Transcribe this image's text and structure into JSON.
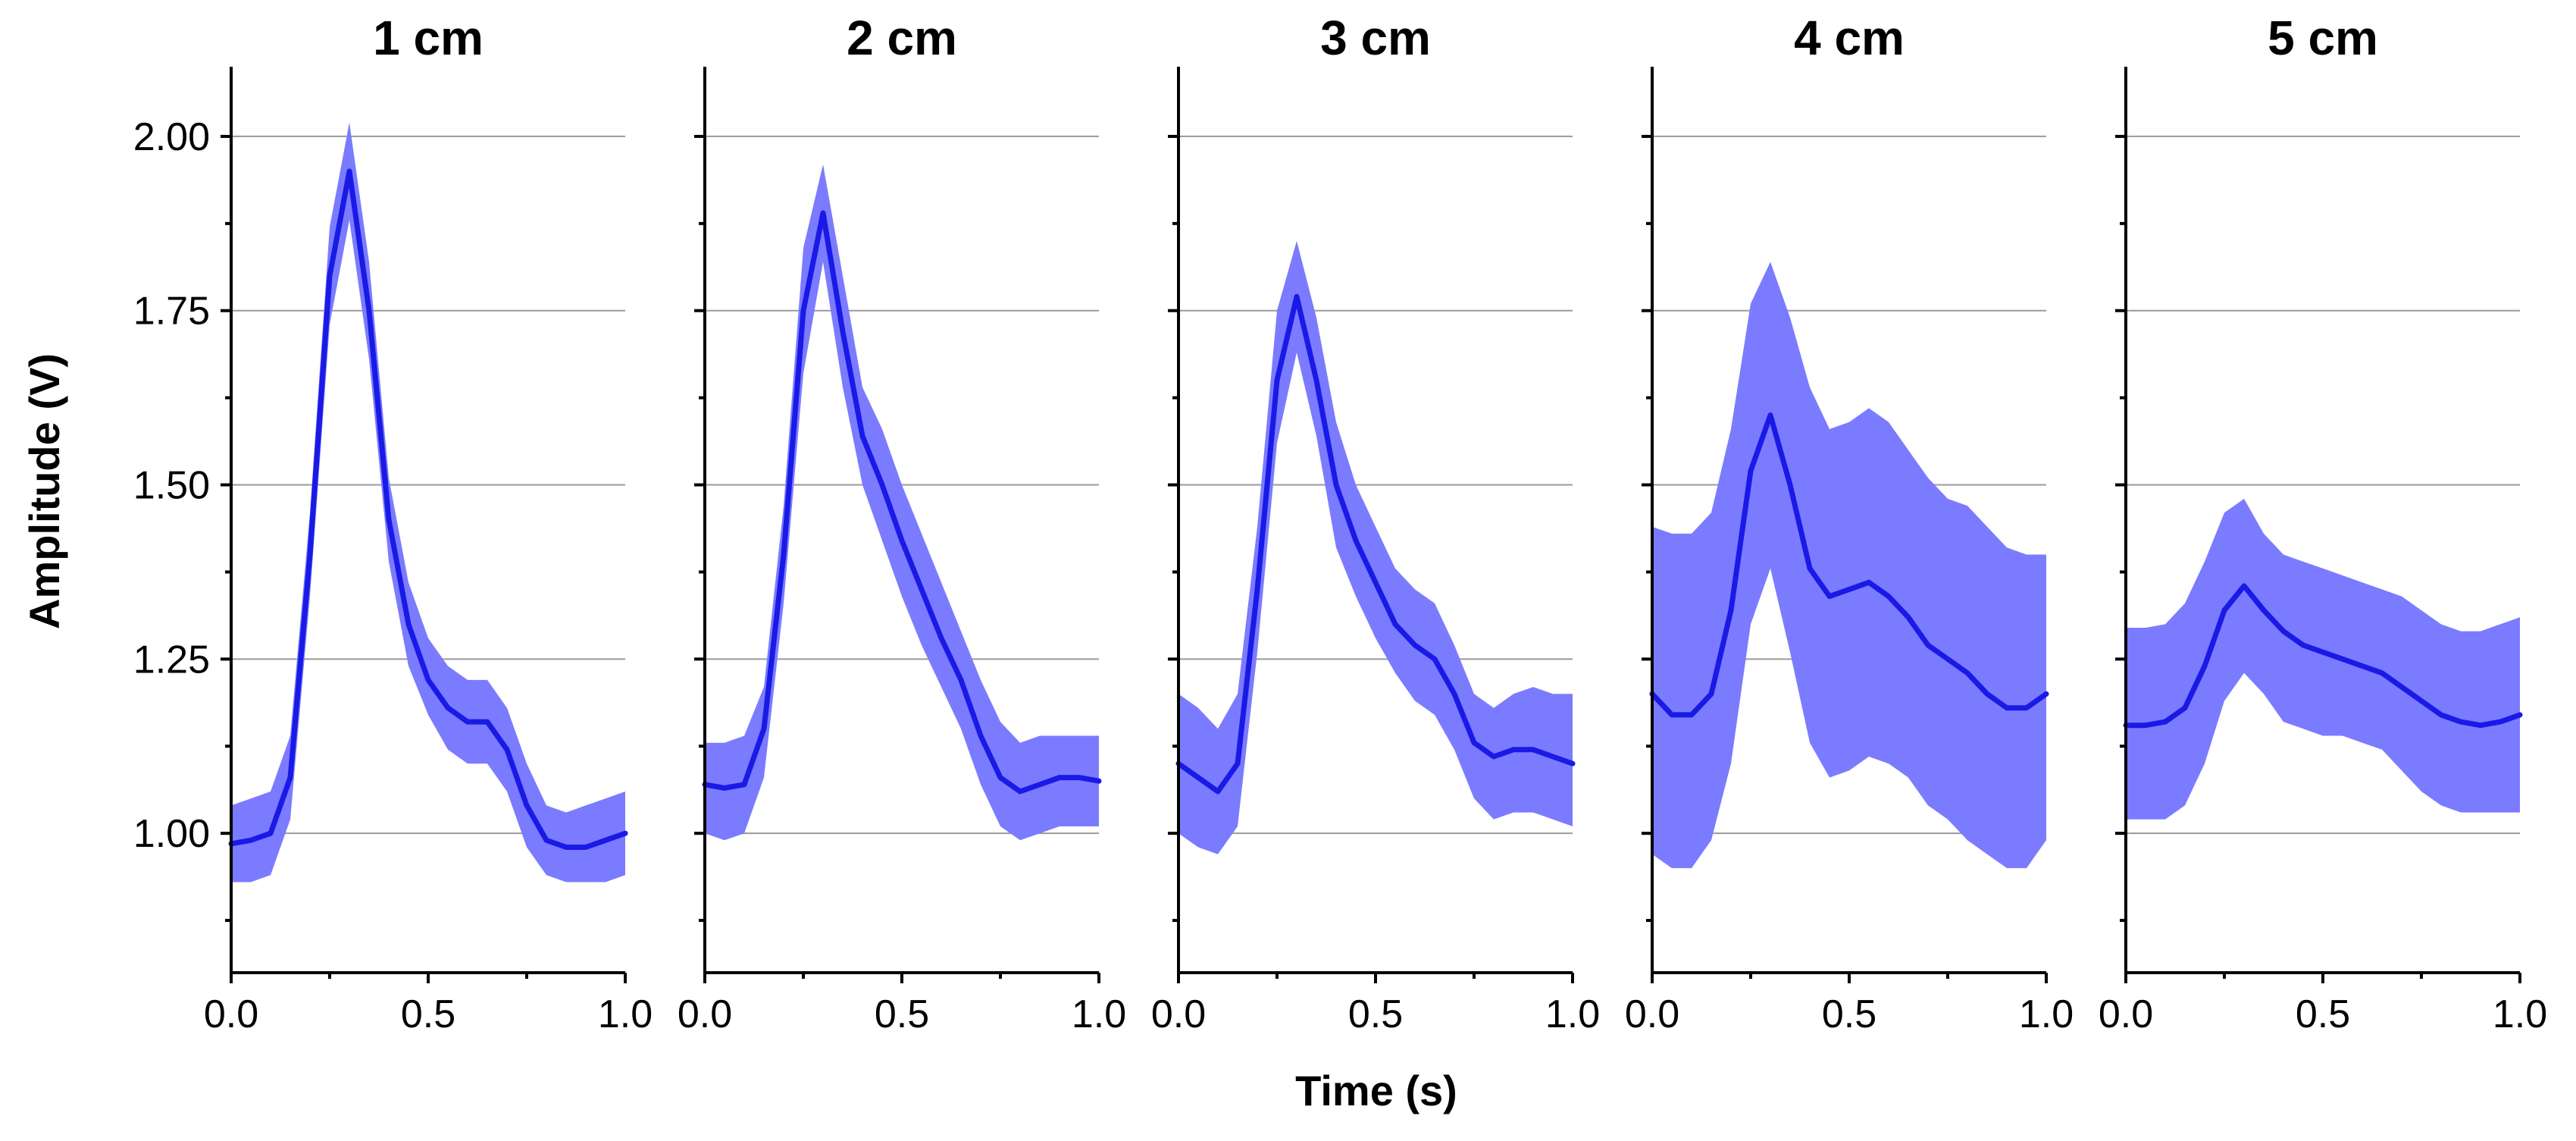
{
  "chart_data": {
    "type": "line",
    "xlabel": "Time (s)",
    "ylabel": "Amplitude (V)",
    "xlim": [
      0.0,
      1.0
    ],
    "ylim": [
      0.8,
      2.1
    ],
    "x_ticks": [
      0.0,
      0.5,
      1.0
    ],
    "x_tick_labels": [
      "0.0",
      "0.5",
      "1.0"
    ],
    "y_ticks": [
      1.0,
      1.25,
      1.5,
      1.75,
      2.0
    ],
    "y_tick_labels": [
      "1.00",
      "1.25",
      "1.50",
      "1.75",
      "2.00"
    ],
    "y_minor_ticks": [
      0.875,
      1.125,
      1.375,
      1.625,
      1.875
    ],
    "grid": "horizontal",
    "band": "mean ± spread (shaded)",
    "colors": {
      "mean": "#1a1ae6",
      "band": "#7b7bff",
      "grid": "#9a9a9a"
    },
    "panels": [
      {
        "title": "1 cm",
        "x": [
          0.0,
          0.05,
          0.1,
          0.15,
          0.2,
          0.25,
          0.3,
          0.35,
          0.4,
          0.45,
          0.5,
          0.55,
          0.6,
          0.65,
          0.7,
          0.75,
          0.8,
          0.85,
          0.9,
          0.95,
          1.0
        ],
        "mean": [
          0.985,
          0.99,
          1.0,
          1.08,
          1.4,
          1.8,
          1.95,
          1.75,
          1.45,
          1.3,
          1.22,
          1.18,
          1.16,
          1.16,
          1.12,
          1.04,
          0.99,
          0.98,
          0.98,
          0.99,
          1.0
        ],
        "upper": [
          1.04,
          1.05,
          1.06,
          1.14,
          1.46,
          1.87,
          2.02,
          1.82,
          1.51,
          1.36,
          1.28,
          1.24,
          1.22,
          1.22,
          1.18,
          1.1,
          1.04,
          1.03,
          1.04,
          1.05,
          1.06
        ],
        "lower": [
          0.93,
          0.93,
          0.94,
          1.02,
          1.34,
          1.73,
          1.88,
          1.68,
          1.39,
          1.24,
          1.17,
          1.12,
          1.1,
          1.1,
          1.06,
          0.98,
          0.94,
          0.93,
          0.93,
          0.93,
          0.94
        ]
      },
      {
        "title": "2 cm",
        "x": [
          0.0,
          0.05,
          0.1,
          0.15,
          0.2,
          0.25,
          0.3,
          0.35,
          0.4,
          0.45,
          0.5,
          0.55,
          0.6,
          0.65,
          0.7,
          0.75,
          0.8,
          0.85,
          0.9,
          0.95,
          1.0
        ],
        "mean": [
          1.07,
          1.065,
          1.07,
          1.15,
          1.4,
          1.75,
          1.89,
          1.72,
          1.57,
          1.5,
          1.42,
          1.35,
          1.28,
          1.22,
          1.14,
          1.08,
          1.06,
          1.07,
          1.08,
          1.08,
          1.075
        ],
        "upper": [
          1.13,
          1.13,
          1.14,
          1.21,
          1.47,
          1.84,
          1.96,
          1.8,
          1.64,
          1.58,
          1.5,
          1.43,
          1.36,
          1.29,
          1.22,
          1.16,
          1.13,
          1.14,
          1.14,
          1.14,
          1.14
        ],
        "lower": [
          1.0,
          0.99,
          1.0,
          1.08,
          1.33,
          1.66,
          1.82,
          1.64,
          1.5,
          1.42,
          1.34,
          1.27,
          1.21,
          1.15,
          1.07,
          1.01,
          0.99,
          1.0,
          1.01,
          1.01,
          1.01
        ]
      },
      {
        "title": "3 cm",
        "x": [
          0.0,
          0.05,
          0.1,
          0.15,
          0.2,
          0.25,
          0.3,
          0.35,
          0.4,
          0.45,
          0.5,
          0.55,
          0.6,
          0.65,
          0.7,
          0.75,
          0.8,
          0.85,
          0.9,
          0.95,
          1.0
        ],
        "mean": [
          1.1,
          1.08,
          1.06,
          1.1,
          1.35,
          1.65,
          1.77,
          1.65,
          1.5,
          1.42,
          1.36,
          1.3,
          1.27,
          1.25,
          1.2,
          1.13,
          1.11,
          1.12,
          1.12,
          1.11,
          1.1
        ],
        "upper": [
          1.2,
          1.18,
          1.15,
          1.2,
          1.44,
          1.75,
          1.85,
          1.74,
          1.59,
          1.5,
          1.44,
          1.38,
          1.35,
          1.33,
          1.27,
          1.2,
          1.18,
          1.2,
          1.21,
          1.2,
          1.2
        ],
        "lower": [
          1.0,
          0.98,
          0.97,
          1.01,
          1.26,
          1.56,
          1.69,
          1.57,
          1.41,
          1.34,
          1.28,
          1.23,
          1.19,
          1.17,
          1.12,
          1.05,
          1.02,
          1.03,
          1.03,
          1.02,
          1.01
        ]
      },
      {
        "title": "4 cm",
        "x": [
          0.0,
          0.05,
          0.1,
          0.15,
          0.2,
          0.25,
          0.3,
          0.35,
          0.4,
          0.45,
          0.5,
          0.55,
          0.6,
          0.65,
          0.7,
          0.75,
          0.8,
          0.85,
          0.9,
          0.95,
          1.0
        ],
        "mean": [
          1.2,
          1.17,
          1.17,
          1.2,
          1.32,
          1.52,
          1.6,
          1.5,
          1.38,
          1.34,
          1.35,
          1.36,
          1.34,
          1.31,
          1.27,
          1.25,
          1.23,
          1.2,
          1.18,
          1.18,
          1.2
        ],
        "upper": [
          1.44,
          1.43,
          1.43,
          1.46,
          1.58,
          1.76,
          1.82,
          1.74,
          1.64,
          1.58,
          1.59,
          1.61,
          1.59,
          1.55,
          1.51,
          1.48,
          1.47,
          1.44,
          1.41,
          1.4,
          1.4
        ],
        "lower": [
          0.97,
          0.95,
          0.95,
          0.99,
          1.1,
          1.3,
          1.38,
          1.26,
          1.13,
          1.08,
          1.09,
          1.11,
          1.1,
          1.08,
          1.04,
          1.02,
          0.99,
          0.97,
          0.95,
          0.95,
          0.99
        ]
      },
      {
        "title": "5 cm",
        "x": [
          0.0,
          0.05,
          0.1,
          0.15,
          0.2,
          0.25,
          0.3,
          0.35,
          0.4,
          0.45,
          0.5,
          0.55,
          0.6,
          0.65,
          0.7,
          0.75,
          0.8,
          0.85,
          0.9,
          0.95,
          1.0
        ],
        "mean": [
          1.155,
          1.155,
          1.16,
          1.18,
          1.24,
          1.32,
          1.355,
          1.32,
          1.29,
          1.27,
          1.26,
          1.25,
          1.24,
          1.23,
          1.21,
          1.19,
          1.17,
          1.16,
          1.155,
          1.16,
          1.17
        ],
        "upper": [
          1.295,
          1.295,
          1.3,
          1.33,
          1.39,
          1.46,
          1.48,
          1.43,
          1.4,
          1.39,
          1.38,
          1.37,
          1.36,
          1.35,
          1.34,
          1.32,
          1.3,
          1.29,
          1.29,
          1.3,
          1.31
        ],
        "lower": [
          1.02,
          1.02,
          1.02,
          1.04,
          1.1,
          1.19,
          1.23,
          1.2,
          1.16,
          1.15,
          1.14,
          1.14,
          1.13,
          1.12,
          1.09,
          1.06,
          1.04,
          1.03,
          1.03,
          1.03,
          1.03
        ]
      }
    ]
  }
}
